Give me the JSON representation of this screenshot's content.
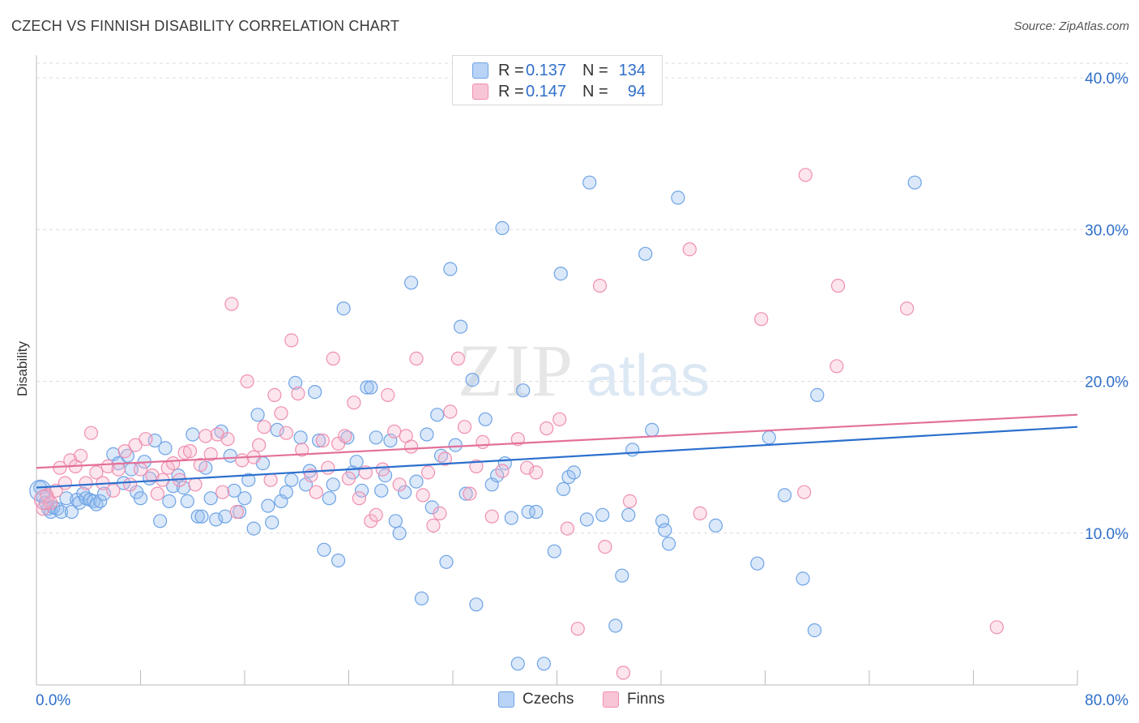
{
  "title": "CZECH VS FINNISH DISABILITY CORRELATION CHART",
  "source": "Source: ZipAtlas.com",
  "watermark": {
    "zip": "ZIP",
    "atlas": "atlas"
  },
  "legend_top": [
    {
      "r_label": "R =",
      "r_value": "0.137",
      "n_label": "N =",
      "n_value": "134",
      "color": "#6ea3e6",
      "fill": "#b8d3f5"
    },
    {
      "r_label": "R =",
      "r_value": "0.147",
      "n_label": "N =",
      "n_value": "94",
      "color": "#ef8fb0",
      "fill": "#f8c5d6"
    }
  ],
  "legend_bottom": [
    {
      "label": "Czechs",
      "color": "#6ea3e6",
      "fill": "#b8d3f5"
    },
    {
      "label": "Finns",
      "color": "#ef8fb0",
      "fill": "#f8c5d6"
    }
  ],
  "chart_data": {
    "type": "scatter",
    "title": "CZECH VS FINNISH DISABILITY CORRELATION CHART",
    "xlabel": "",
    "ylabel": "Disability",
    "xlim": [
      0,
      80
    ],
    "ylim": [
      0,
      40
    ],
    "x_tick_labels": [
      "0.0%",
      "80.0%"
    ],
    "y_ticks": [
      10,
      20,
      30,
      40
    ],
    "y_tick_labels": [
      "10.0%",
      "20.0%",
      "30.0%",
      "40.0%"
    ],
    "grid": true,
    "legend_position": "top-center",
    "series": [
      {
        "name": "Czechs",
        "color": "#6ea3e6",
        "trend": {
          "x": [
            0,
            80
          ],
          "y": [
            13.0,
            17.0
          ],
          "color": "#2b6fcd"
        },
        "points": [
          [
            0.3,
            13.0
          ],
          [
            0.5,
            12.4
          ],
          [
            0.7,
            12.0
          ],
          [
            0.9,
            11.6
          ],
          [
            1.1,
            11.4
          ],
          [
            1.3,
            11.7
          ],
          [
            1.6,
            11.6
          ],
          [
            1.9,
            11.4
          ],
          [
            2.3,
            12.3
          ],
          [
            2.7,
            11.4
          ],
          [
            3.1,
            12.2
          ],
          [
            3.3,
            12.0
          ],
          [
            3.6,
            12.6
          ],
          [
            3.8,
            12.3
          ],
          [
            4.1,
            12.2
          ],
          [
            4.4,
            12.1
          ],
          [
            4.6,
            11.9
          ],
          [
            4.9,
            12.1
          ],
          [
            5.2,
            12.6
          ],
          [
            5.9,
            15.2
          ],
          [
            6.3,
            14.6
          ],
          [
            6.7,
            13.3
          ],
          [
            7.0,
            15.1
          ],
          [
            7.3,
            14.2
          ],
          [
            7.7,
            12.7
          ],
          [
            8.0,
            12.3
          ],
          [
            8.3,
            14.7
          ],
          [
            8.7,
            13.6
          ],
          [
            9.1,
            16.1
          ],
          [
            9.5,
            10.8
          ],
          [
            9.9,
            15.6
          ],
          [
            10.2,
            12.1
          ],
          [
            10.5,
            13.1
          ],
          [
            10.9,
            13.8
          ],
          [
            11.3,
            13.0
          ],
          [
            11.6,
            12.1
          ],
          [
            12.0,
            16.5
          ],
          [
            12.4,
            11.1
          ],
          [
            12.7,
            11.1
          ],
          [
            13.0,
            14.3
          ],
          [
            13.4,
            12.3
          ],
          [
            13.8,
            10.9
          ],
          [
            14.2,
            16.7
          ],
          [
            14.5,
            11.1
          ],
          [
            14.9,
            15.1
          ],
          [
            15.2,
            12.8
          ],
          [
            15.6,
            11.4
          ],
          [
            16.0,
            12.3
          ],
          [
            16.3,
            13.5
          ],
          [
            16.7,
            10.3
          ],
          [
            17.0,
            17.8
          ],
          [
            17.4,
            14.6
          ],
          [
            17.8,
            11.8
          ],
          [
            18.1,
            10.7
          ],
          [
            18.5,
            16.8
          ],
          [
            18.8,
            12.1
          ],
          [
            19.2,
            12.7
          ],
          [
            19.6,
            13.5
          ],
          [
            19.9,
            19.9
          ],
          [
            20.3,
            16.3
          ],
          [
            20.7,
            13.2
          ],
          [
            21.0,
            14.1
          ],
          [
            21.4,
            19.3
          ],
          [
            21.7,
            16.1
          ],
          [
            22.1,
            8.9
          ],
          [
            22.5,
            12.3
          ],
          [
            22.8,
            13.2
          ],
          [
            23.2,
            8.2
          ],
          [
            23.6,
            24.8
          ],
          [
            23.9,
            16.3
          ],
          [
            24.3,
            14.0
          ],
          [
            24.6,
            14.7
          ],
          [
            25.0,
            12.8
          ],
          [
            25.4,
            19.6
          ],
          [
            25.7,
            19.6
          ],
          [
            26.1,
            16.3
          ],
          [
            26.5,
            12.8
          ],
          [
            26.8,
            13.8
          ],
          [
            27.2,
            16.1
          ],
          [
            27.6,
            10.8
          ],
          [
            27.9,
            10.0
          ],
          [
            28.3,
            12.7
          ],
          [
            28.8,
            26.5
          ],
          [
            29.2,
            13.4
          ],
          [
            29.6,
            5.7
          ],
          [
            30.0,
            16.5
          ],
          [
            30.4,
            11.7
          ],
          [
            30.8,
            17.8
          ],
          [
            31.1,
            15.1
          ],
          [
            31.5,
            8.1
          ],
          [
            31.8,
            27.4
          ],
          [
            32.2,
            15.8
          ],
          [
            32.6,
            23.6
          ],
          [
            33.0,
            12.6
          ],
          [
            33.5,
            20.1
          ],
          [
            33.8,
            5.3
          ],
          [
            34.5,
            17.5
          ],
          [
            35.0,
            13.2
          ],
          [
            35.4,
            13.8
          ],
          [
            35.8,
            30.1
          ],
          [
            36.0,
            14.6
          ],
          [
            36.5,
            11.0
          ],
          [
            37.0,
            1.4
          ],
          [
            37.4,
            19.4
          ],
          [
            37.8,
            11.4
          ],
          [
            38.4,
            11.4
          ],
          [
            39.0,
            1.4
          ],
          [
            39.8,
            8.8
          ],
          [
            40.3,
            27.1
          ],
          [
            40.5,
            12.9
          ],
          [
            40.9,
            13.7
          ],
          [
            41.3,
            14.0
          ],
          [
            42.3,
            10.9
          ],
          [
            42.5,
            33.1
          ],
          [
            43.5,
            11.2
          ],
          [
            44.5,
            3.9
          ],
          [
            45.0,
            7.2
          ],
          [
            45.5,
            11.2
          ],
          [
            45.8,
            15.5
          ],
          [
            46.8,
            28.4
          ],
          [
            47.3,
            16.8
          ],
          [
            48.1,
            10.8
          ],
          [
            48.3,
            10.2
          ],
          [
            48.6,
            9.3
          ],
          [
            49.3,
            32.1
          ],
          [
            52.2,
            10.5
          ],
          [
            55.4,
            8.0
          ],
          [
            56.3,
            16.3
          ],
          [
            57.5,
            12.5
          ],
          [
            58.9,
            7.0
          ],
          [
            59.8,
            3.6
          ],
          [
            60.0,
            19.1
          ],
          [
            67.5,
            33.1
          ]
        ]
      },
      {
        "name": "Finns",
        "color": "#ef8fb0",
        "trend": {
          "x": [
            0,
            80
          ],
          "y": [
            14.3,
            17.8
          ],
          "color": "#e3709a"
        },
        "points": [
          [
            0.5,
            11.6
          ],
          [
            0.8,
            12.5
          ],
          [
            1.1,
            12.0
          ],
          [
            1.5,
            12.8
          ],
          [
            1.8,
            14.3
          ],
          [
            2.2,
            13.3
          ],
          [
            2.6,
            14.8
          ],
          [
            3.0,
            14.4
          ],
          [
            3.4,
            15.1
          ],
          [
            3.8,
            13.3
          ],
          [
            4.2,
            16.6
          ],
          [
            4.6,
            14.0
          ],
          [
            5.1,
            13.3
          ],
          [
            5.5,
            14.4
          ],
          [
            5.9,
            12.8
          ],
          [
            6.3,
            14.2
          ],
          [
            6.8,
            15.4
          ],
          [
            7.2,
            13.2
          ],
          [
            7.6,
            15.8
          ],
          [
            8.0,
            14.2
          ],
          [
            8.4,
            16.2
          ],
          [
            8.9,
            13.8
          ],
          [
            9.3,
            12.6
          ],
          [
            9.7,
            13.5
          ],
          [
            10.1,
            14.3
          ],
          [
            10.5,
            14.6
          ],
          [
            11.0,
            13.5
          ],
          [
            11.4,
            15.3
          ],
          [
            11.8,
            15.4
          ],
          [
            12.2,
            13.2
          ],
          [
            12.6,
            14.5
          ],
          [
            13.0,
            16.4
          ],
          [
            13.4,
            15.2
          ],
          [
            13.9,
            16.5
          ],
          [
            14.3,
            12.7
          ],
          [
            14.7,
            16.2
          ],
          [
            15.0,
            25.1
          ],
          [
            15.4,
            11.4
          ],
          [
            15.8,
            14.8
          ],
          [
            16.2,
            20.0
          ],
          [
            16.7,
            15.0
          ],
          [
            17.1,
            15.8
          ],
          [
            17.5,
            17.0
          ],
          [
            18.0,
            13.5
          ],
          [
            18.3,
            19.1
          ],
          [
            18.8,
            17.9
          ],
          [
            19.2,
            16.6
          ],
          [
            19.6,
            22.7
          ],
          [
            20.1,
            19.2
          ],
          [
            20.4,
            15.5
          ],
          [
            21.1,
            13.8
          ],
          [
            21.5,
            12.7
          ],
          [
            22.0,
            16.1
          ],
          [
            22.4,
            14.3
          ],
          [
            22.8,
            21.5
          ],
          [
            23.2,
            15.9
          ],
          [
            23.7,
            16.4
          ],
          [
            24.0,
            13.6
          ],
          [
            24.4,
            18.6
          ],
          [
            24.8,
            12.3
          ],
          [
            25.3,
            14.0
          ],
          [
            25.7,
            10.8
          ],
          [
            26.1,
            11.2
          ],
          [
            26.6,
            14.2
          ],
          [
            27.0,
            19.1
          ],
          [
            27.5,
            16.7
          ],
          [
            27.9,
            13.2
          ],
          [
            28.4,
            16.4
          ],
          [
            28.8,
            15.7
          ],
          [
            29.2,
            21.5
          ],
          [
            29.7,
            12.5
          ],
          [
            30.1,
            14.0
          ],
          [
            30.5,
            10.5
          ],
          [
            31.0,
            11.3
          ],
          [
            31.4,
            14.9
          ],
          [
            31.8,
            18.0
          ],
          [
            32.4,
            21.5
          ],
          [
            32.9,
            17.0
          ],
          [
            33.3,
            12.6
          ],
          [
            33.8,
            14.4
          ],
          [
            34.3,
            16.0
          ],
          [
            35.0,
            11.1
          ],
          [
            35.8,
            14.1
          ],
          [
            37.0,
            16.2
          ],
          [
            37.7,
            14.3
          ],
          [
            38.4,
            14.0
          ],
          [
            39.2,
            16.9
          ],
          [
            40.2,
            17.5
          ],
          [
            40.8,
            10.3
          ],
          [
            41.6,
            3.7
          ],
          [
            43.3,
            26.3
          ],
          [
            43.7,
            9.1
          ],
          [
            45.1,
            0.8
          ],
          [
            45.6,
            12.1
          ],
          [
            50.2,
            28.7
          ],
          [
            51.0,
            11.3
          ],
          [
            55.7,
            24.1
          ],
          [
            59.0,
            12.7
          ],
          [
            59.1,
            33.6
          ],
          [
            61.5,
            21.0
          ],
          [
            61.6,
            26.3
          ],
          [
            66.9,
            24.8
          ],
          [
            73.8,
            3.8
          ]
        ]
      }
    ]
  }
}
